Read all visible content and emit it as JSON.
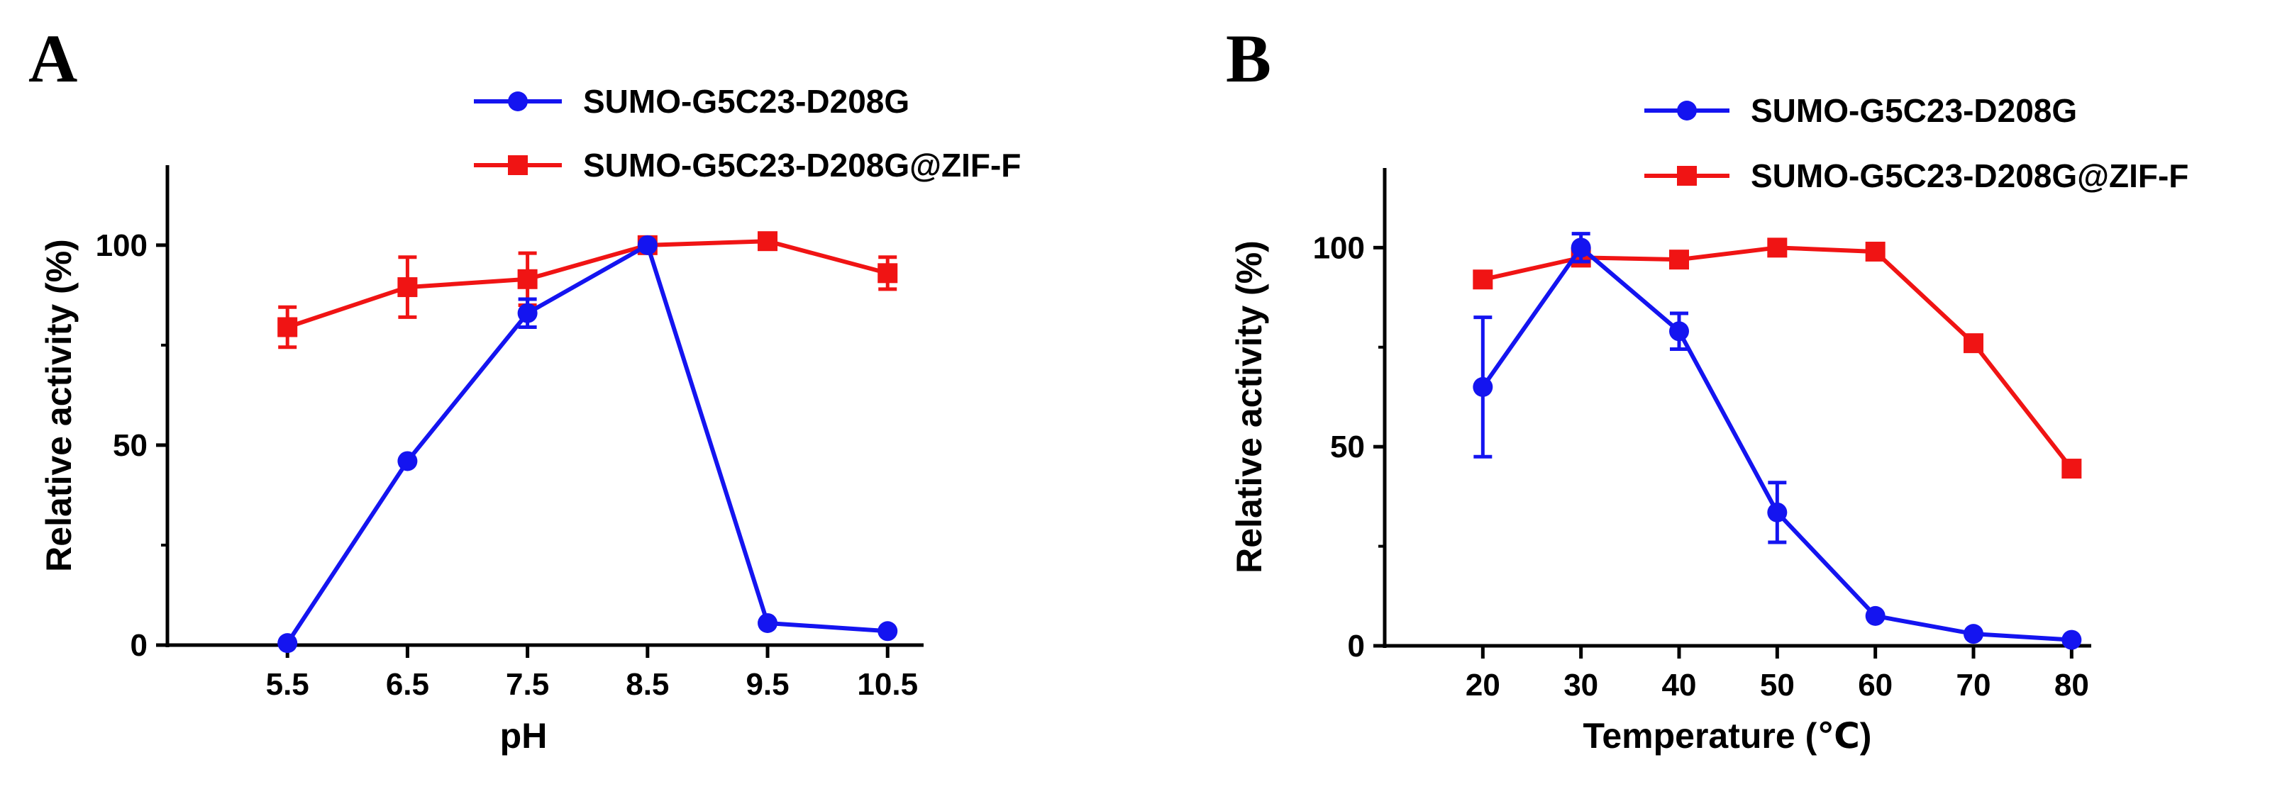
{
  "colors": {
    "series1": "#1414f0",
    "series2": "#f01414",
    "axis": "#000000"
  },
  "chart_data": [
    {
      "panel": "A",
      "type": "line",
      "xlabel": "pH",
      "ylabel": "Relative activity (%)",
      "x": [
        5.5,
        6.5,
        7.5,
        8.5,
        9.5,
        10.5
      ],
      "x_tick_labels": [
        "5.5",
        "6.5",
        "7.5",
        "8.5",
        "9.5",
        "10.5"
      ],
      "xlim": [
        4.5,
        10.8
      ],
      "ylim": [
        0,
        120
      ],
      "y_ticks": [
        0,
        50,
        100
      ],
      "legend_position": "top",
      "series": [
        {
          "name": "SUMO-G5C23-D208G",
          "marker": "circle",
          "color": "#1414f0",
          "values": [
            0.5,
            46,
            83,
            100,
            5.5,
            3.5
          ],
          "errors": [
            0,
            0,
            3.5,
            0,
            0,
            0
          ]
        },
        {
          "name": "SUMO-G5C23-D208G@ZIF-F",
          "marker": "square",
          "color": "#f01414",
          "values": [
            79.5,
            89.5,
            91.5,
            100,
            101,
            93
          ],
          "errors": [
            5,
            7.5,
            6.5,
            0,
            0,
            4
          ]
        }
      ]
    },
    {
      "panel": "B",
      "type": "line",
      "xlabel": "Temperature (℃)",
      "ylabel": "Relative activity (%)",
      "x": [
        20,
        30,
        40,
        50,
        60,
        70,
        80
      ],
      "x_tick_labels": [
        "20",
        "30",
        "40",
        "50",
        "60",
        "70",
        "80"
      ],
      "xlim": [
        10,
        82
      ],
      "ylim": [
        0,
        120
      ],
      "y_ticks": [
        0,
        50,
        100
      ],
      "legend_position": "top-right",
      "series": [
        {
          "name": "SUMO-G5C23-D208G",
          "marker": "circle",
          "color": "#1414f0",
          "values": [
            65,
            100,
            79,
            33.5,
            7.5,
            3,
            1.5
          ],
          "errors": [
            17.5,
            3.5,
            4.5,
            7.5,
            0,
            0,
            0
          ]
        },
        {
          "name": "SUMO-G5C23-D208G@ZIF-F",
          "marker": "square",
          "color": "#f01414",
          "values": [
            92,
            97.5,
            97,
            100,
            99,
            76,
            44.5
          ],
          "errors": [
            0,
            0,
            0,
            0,
            0,
            0,
            0
          ]
        }
      ]
    }
  ]
}
